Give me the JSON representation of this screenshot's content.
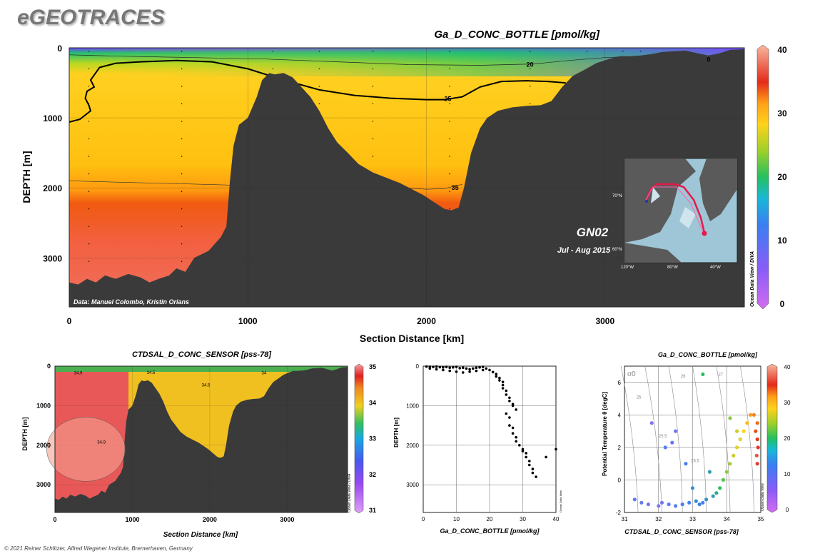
{
  "brand": "eGEOTRACES",
  "footer": "© 2021 Reiner Schlitzer, Alfred Wegener Institute, Bremerhaven, Germany",
  "odv_credit": "Ocean Data View / DIVA",
  "odv_credit_short": "Ocean Data View",
  "colors": {
    "land": "#3a3a3a",
    "dots": "#000000",
    "bg": "#ffffff"
  },
  "chart_data": [
    {
      "type": "heatmap",
      "title": "Ga_D_CONC_BOTTLE [pmol/kg]",
      "xlabel": "Section Distance [km]",
      "ylabel": "DEPTH [m]",
      "xlim": [
        0,
        3780
      ],
      "ylim": [
        3700,
        0
      ],
      "x_ticks": [
        "0",
        "1000",
        "2000",
        "3000"
      ],
      "y_ticks": [
        "0",
        "1000",
        "2000",
        "3000"
      ],
      "colorbar": {
        "min": 0,
        "max": 40,
        "ticks": [
          "0",
          "10",
          "20",
          "30",
          "40"
        ]
      },
      "contour_labels": [
        "20",
        "25",
        "35",
        "0"
      ],
      "annotations": {
        "cruise": "GN02",
        "period": "Jul - Aug 2015",
        "credit": "Data: Manuel Colombo, Kristin Orians"
      },
      "inset_map_labels": [
        "70°N",
        "60°N",
        "120°W",
        "80°W",
        "40°W"
      ],
      "bathymetry": [
        [
          0,
          3350
        ],
        [
          50,
          3380
        ],
        [
          100,
          3300
        ],
        [
          150,
          3350
        ],
        [
          200,
          3250
        ],
        [
          260,
          3300
        ],
        [
          330,
          3230
        ],
        [
          400,
          3280
        ],
        [
          450,
          3350
        ],
        [
          500,
          3300
        ],
        [
          560,
          3250
        ],
        [
          600,
          3150
        ],
        [
          650,
          3200
        ],
        [
          700,
          3000
        ],
        [
          780,
          2900
        ],
        [
          850,
          2700
        ],
        [
          880,
          2550
        ],
        [
          900,
          1900
        ],
        [
          920,
          1400
        ],
        [
          950,
          1100
        ],
        [
          1000,
          1000
        ],
        [
          1050,
          700
        ],
        [
          1080,
          460
        ],
        [
          1120,
          360
        ],
        [
          1150,
          380
        ],
        [
          1200,
          360
        ],
        [
          1250,
          420
        ],
        [
          1300,
          560
        ],
        [
          1350,
          700
        ],
        [
          1400,
          900
        ],
        [
          1450,
          1150
        ],
        [
          1500,
          1350
        ],
        [
          1560,
          1500
        ],
        [
          1620,
          1660
        ],
        [
          1700,
          1780
        ],
        [
          1780,
          1860
        ],
        [
          1850,
          1930
        ],
        [
          1920,
          2020
        ],
        [
          1980,
          2100
        ],
        [
          2040,
          2200
        ],
        [
          2100,
          2300
        ],
        [
          2140,
          2320
        ],
        [
          2180,
          2280
        ],
        [
          2210,
          2000
        ],
        [
          2250,
          1500
        ],
        [
          2300,
          1150
        ],
        [
          2340,
          1000
        ],
        [
          2400,
          900
        ],
        [
          2480,
          850
        ],
        [
          2560,
          830
        ],
        [
          2640,
          820
        ],
        [
          2700,
          760
        ],
        [
          2760,
          560
        ],
        [
          2820,
          400
        ],
        [
          2880,
          320
        ],
        [
          2950,
          220
        ],
        [
          3020,
          160
        ],
        [
          3080,
          120
        ],
        [
          3140,
          120
        ],
        [
          3200,
          110
        ],
        [
          3260,
          90
        ],
        [
          3320,
          60
        ],
        [
          3380,
          50
        ],
        [
          3450,
          40
        ],
        [
          3520,
          80
        ],
        [
          3580,
          110
        ],
        [
          3640,
          80
        ],
        [
          3700,
          30
        ],
        [
          3780,
          20
        ]
      ],
      "contours": {
        "c25": [
          [
            0,
            1060
          ],
          [
            60,
            1020
          ],
          [
            120,
            900
          ],
          [
            110,
            820
          ],
          [
            90,
            720
          ],
          [
            100,
            620
          ],
          [
            140,
            560
          ],
          [
            120,
            460
          ],
          [
            170,
            280
          ],
          [
            260,
            220
          ],
          [
            400,
            200
          ],
          [
            600,
            180
          ],
          [
            800,
            200
          ],
          [
            1000,
            300
          ],
          [
            1200,
            460
          ],
          [
            1400,
            600
          ],
          [
            1600,
            680
          ],
          [
            1800,
            720
          ],
          [
            2000,
            740
          ],
          [
            2100,
            740
          ],
          [
            2200,
            700
          ],
          [
            2300,
            560
          ],
          [
            2420,
            480
          ],
          [
            2560,
            470
          ],
          [
            2680,
            480
          ],
          [
            2780,
            500
          ]
        ],
        "c20": [
          [
            0,
            100
          ],
          [
            300,
            120
          ],
          [
            700,
            140
          ],
          [
            1100,
            160
          ],
          [
            1500,
            200
          ],
          [
            1900,
            240
          ],
          [
            2300,
            250
          ],
          [
            2600,
            230
          ],
          [
            2800,
            180
          ],
          [
            3000,
            140
          ],
          [
            3200,
            120
          ]
        ],
        "c35": [
          [
            0,
            1900
          ],
          [
            300,
            1920
          ],
          [
            600,
            1940
          ],
          [
            900,
            1960
          ],
          [
            1500,
            1960
          ],
          [
            1800,
            1990
          ],
          [
            2000,
            2020
          ],
          [
            2100,
            2010
          ],
          [
            2200,
            1950
          ]
        ]
      }
    },
    {
      "type": "heatmap",
      "title": "CTDSAL_D_CONC_SENSOR [pss-78]",
      "xlabel": "Section Distance [km]",
      "ylabel": "DEPTH [m]",
      "xlim": [
        0,
        3780
      ],
      "ylim": [
        3700,
        0
      ],
      "x_ticks": [
        "0",
        "1000",
        "2000",
        "3000"
      ],
      "y_ticks": [
        "0",
        "1000",
        "2000",
        "3000"
      ],
      "colorbar": {
        "min": 31,
        "max": 35,
        "ticks": [
          "31",
          "32",
          "33",
          "34",
          "35"
        ]
      },
      "contour_labels": [
        "34.9",
        "34.5",
        "34",
        "34.5",
        "34.9"
      ]
    },
    {
      "type": "scatter",
      "xlabel": "Ga_D_CONC_BOTTLE [pmol/kg]",
      "ylabel": "DEPTH [m]",
      "xlim": [
        0,
        40
      ],
      "ylim": [
        3700,
        0
      ],
      "x_ticks": [
        "0",
        "10",
        "20",
        "30",
        "40"
      ],
      "y_ticks": [
        "0",
        "1000",
        "2000",
        "3000"
      ],
      "x": [
        1,
        2,
        3,
        4,
        5,
        6,
        7,
        8,
        9,
        10,
        11,
        12,
        13,
        14,
        15,
        16,
        17,
        18,
        19,
        20,
        2,
        4,
        6,
        8,
        10,
        12,
        14,
        16,
        18,
        21,
        22,
        22,
        23,
        23,
        24,
        24,
        24,
        25,
        25,
        26,
        26,
        27,
        27,
        28,
        25,
        26,
        26,
        27,
        27,
        28,
        28,
        29,
        30,
        30,
        31,
        31,
        32,
        32,
        33,
        33,
        34,
        37,
        40
      ],
      "y": [
        10,
        15,
        20,
        10,
        25,
        30,
        20,
        40,
        30,
        20,
        50,
        40,
        60,
        80,
        60,
        40,
        30,
        20,
        60,
        100,
        60,
        80,
        100,
        120,
        140,
        160,
        140,
        120,
        100,
        150,
        200,
        260,
        300,
        360,
        400,
        480,
        560,
        620,
        720,
        800,
        880,
        960,
        1000,
        1100,
        1200,
        1300,
        1500,
        1560,
        1700,
        1800,
        1900,
        2000,
        2100,
        2150,
        2200,
        2300,
        2400,
        2500,
        2600,
        2700,
        2800,
        2300,
        2100
      ]
    },
    {
      "type": "scatter",
      "title": "Ga_D_CONC_BOTTLE [pmol/kg]",
      "xlabel": "CTDSAL_D_CONC_SENSOR [pss-78]",
      "ylabel": "Potential Temperature θ [degC]",
      "xlim": [
        31,
        35
      ],
      "ylim": [
        -2,
        7
      ],
      "x_ticks": [
        "31",
        "32",
        "33",
        "34",
        "35"
      ],
      "y_ticks": [
        "-2",
        "0",
        "2",
        "4",
        "6"
      ],
      "colorbar": {
        "min": 0,
        "max": 40,
        "ticks": [
          "0",
          "10",
          "20",
          "30",
          "40"
        ]
      },
      "isopycnal_labels": [
        "σ0",
        "25",
        "25.5",
        "26",
        "26.5",
        "27"
      ],
      "x": [
        31.3,
        31.5,
        31.7,
        32.0,
        32.1,
        32.3,
        32.5,
        32.7,
        32.9,
        33.1,
        33.2,
        33.3,
        33.4,
        33.6,
        33.7,
        33.8,
        33.9,
        34.0,
        34.1,
        34.2,
        34.3,
        34.4,
        34.5,
        34.6,
        34.7,
        34.8,
        34.9,
        34.85,
        34.9,
        34.92,
        34.88,
        34.9,
        32.2,
        32.5,
        32.8,
        33.0,
        33.5,
        34.1,
        34.3,
        33.3,
        31.8,
        32.4
      ],
      "y": [
        -1.2,
        -1.4,
        -1.5,
        -1.6,
        -1.4,
        -1.5,
        -1.6,
        -1.5,
        -1.4,
        -1.3,
        -1.5,
        -1.4,
        -1.2,
        -1.0,
        -0.8,
        -0.5,
        0.0,
        0.5,
        1.0,
        1.5,
        2.0,
        2.5,
        3.0,
        3.5,
        4.0,
        4.0,
        3.5,
        3.0,
        2.5,
        2.0,
        1.5,
        1.0,
        2.0,
        3.0,
        1.0,
        -0.5,
        0.5,
        3.8,
        3.0,
        6.5,
        3.5,
        2.3
      ],
      "c": [
        10,
        9,
        8,
        7,
        8,
        9,
        10,
        11,
        12,
        14,
        13,
        12,
        15,
        16,
        18,
        20,
        22,
        24,
        25,
        26,
        27,
        27,
        28,
        29,
        30,
        31,
        32,
        33,
        34,
        35,
        36,
        35,
        10,
        8,
        12,
        14,
        16,
        24,
        26,
        20,
        7,
        9
      ]
    }
  ]
}
